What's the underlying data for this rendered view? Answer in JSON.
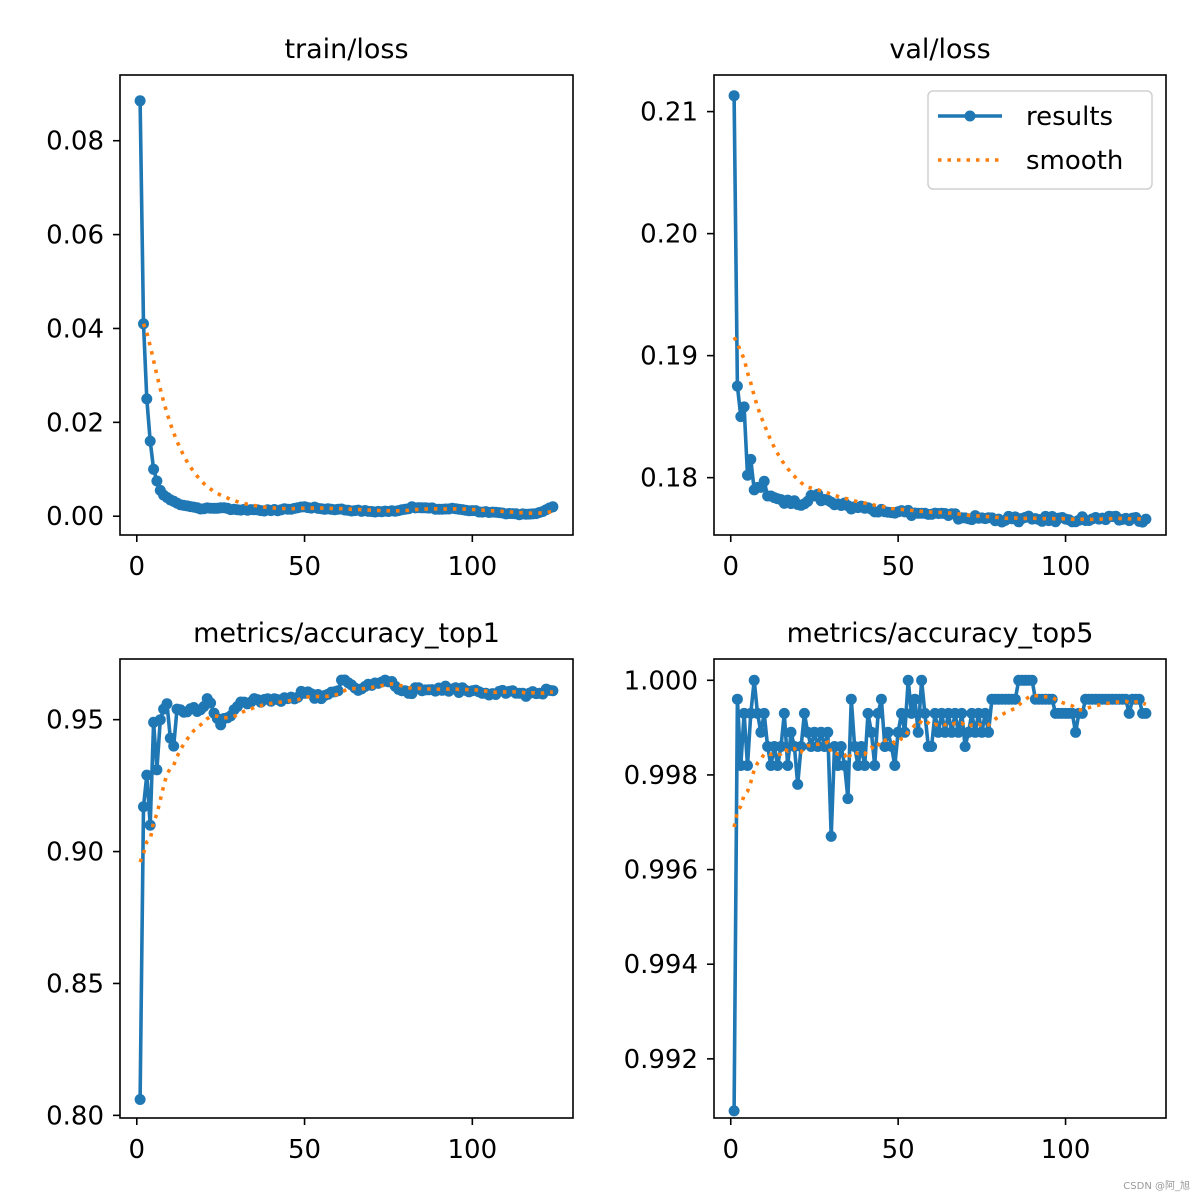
{
  "figure": {
    "watermark": "CSDN @阿_旭",
    "colors": {
      "results": "#1f77b4",
      "smooth": "#ff7f0e",
      "axes": "#000000"
    },
    "legend": {
      "placement": "upper-right",
      "panel": 1,
      "entries": [
        "results",
        "smooth"
      ]
    }
  },
  "chart_data": [
    {
      "type": "line",
      "title": "train/loss",
      "xlabel": "",
      "ylabel": "",
      "xlim": [
        -5,
        130
      ],
      "ylim": [
        -0.004,
        0.094
      ],
      "xticks": [
        0,
        50,
        100
      ],
      "yticks": [
        0.0,
        0.02,
        0.04,
        0.06,
        0.08
      ],
      "ytick_labels": [
        "0.00",
        "0.02",
        "0.04",
        "0.06",
        "0.08"
      ],
      "n_epochs": 124,
      "series": [
        {
          "name": "results",
          "anchors": [
            [
              1,
              0.0885
            ],
            [
              2,
              0.041
            ],
            [
              3,
              0.025
            ],
            [
              4,
              0.016
            ],
            [
              5,
              0.01
            ],
            [
              6,
              0.0075
            ],
            [
              7,
              0.0055
            ],
            [
              8,
              0.0045
            ],
            [
              10,
              0.0035
            ],
            [
              12,
              0.0028
            ],
            [
              15,
              0.0022
            ],
            [
              18,
              0.0018
            ],
            [
              20,
              0.0016
            ],
            [
              25,
              0.0018
            ],
            [
              30,
              0.0014
            ],
            [
              35,
              0.0014
            ],
            [
              40,
              0.0012
            ],
            [
              45,
              0.0015
            ],
            [
              50,
              0.002
            ],
            [
              55,
              0.0016
            ],
            [
              60,
              0.0015
            ],
            [
              65,
              0.0012
            ],
            [
              70,
              0.001
            ],
            [
              75,
              0.001
            ],
            [
              80,
              0.0015
            ],
            [
              82,
              0.002
            ],
            [
              85,
              0.0018
            ],
            [
              90,
              0.0015
            ],
            [
              95,
              0.0016
            ],
            [
              100,
              0.0012
            ],
            [
              105,
              0.0008
            ],
            [
              110,
              0.0005
            ],
            [
              115,
              0.0005
            ],
            [
              118,
              0.0005
            ],
            [
              121,
              0.001
            ],
            [
              124,
              0.002
            ]
          ],
          "noise": 0.00018
        },
        {
          "name": "smooth",
          "smoothing": 0.12,
          "start": 2
        }
      ]
    },
    {
      "type": "line",
      "title": "val/loss",
      "xlabel": "",
      "ylabel": "",
      "xlim": [
        -5,
        130
      ],
      "ylim": [
        0.1753,
        0.213
      ],
      "xticks": [
        0,
        50,
        100
      ],
      "yticks": [
        0.18,
        0.19,
        0.2,
        0.21
      ],
      "ytick_labels": [
        "0.18",
        "0.19",
        "0.20",
        "0.21"
      ],
      "n_epochs": 124,
      "series": [
        {
          "name": "results",
          "anchors": [
            [
              1,
              0.2113
            ],
            [
              2,
              0.1875
            ],
            [
              3,
              0.185
            ],
            [
              4,
              0.1858
            ],
            [
              5,
              0.1802
            ],
            [
              6,
              0.1815
            ],
            [
              7,
              0.179
            ],
            [
              8,
              0.1792
            ],
            [
              10,
              0.1797
            ],
            [
              11,
              0.1785
            ],
            [
              12,
              0.1785
            ],
            [
              15,
              0.1782
            ],
            [
              20,
              0.1778
            ],
            [
              25,
              0.1785
            ],
            [
              30,
              0.178
            ],
            [
              35,
              0.1777
            ],
            [
              40,
              0.1775
            ],
            [
              45,
              0.1774
            ],
            [
              50,
              0.1772
            ],
            [
              55,
              0.1771
            ],
            [
              60,
              0.177
            ],
            [
              65,
              0.1769
            ],
            [
              70,
              0.1767
            ],
            [
              75,
              0.1767
            ],
            [
              80,
              0.1766
            ],
            [
              90,
              0.1766
            ],
            [
              100,
              0.1766
            ],
            [
              110,
              0.1766
            ],
            [
              124,
              0.1766
            ]
          ],
          "noise": 0.00025
        },
        {
          "name": "smooth",
          "smoothing": 0.12,
          "start": 1,
          "start_value": 0.1915
        }
      ]
    },
    {
      "type": "line",
      "title": "metrics/accuracy_top1",
      "xlabel": "",
      "ylabel": "",
      "xlim": [
        -5,
        130
      ],
      "ylim": [
        0.799,
        0.973
      ],
      "xticks": [
        0,
        50,
        100
      ],
      "yticks": [
        0.8,
        0.85,
        0.9,
        0.95
      ],
      "ytick_labels": [
        "0.80",
        "0.85",
        "0.90",
        "0.95"
      ],
      "n_epochs": 124,
      "series": [
        {
          "name": "results",
          "anchors": [
            [
              1,
              0.806
            ],
            [
              2,
              0.917
            ],
            [
              3,
              0.929
            ],
            [
              4,
              0.91
            ],
            [
              5,
              0.949
            ],
            [
              6,
              0.931
            ],
            [
              7,
              0.95
            ],
            [
              8,
              0.954
            ],
            [
              9,
              0.956
            ],
            [
              10,
              0.943
            ],
            [
              11,
              0.94
            ],
            [
              12,
              0.954
            ],
            [
              15,
              0.953
            ],
            [
              20,
              0.955
            ],
            [
              21,
              0.958
            ],
            [
              25,
              0.948
            ],
            [
              30,
              0.955
            ],
            [
              35,
              0.958
            ],
            [
              40,
              0.957
            ],
            [
              45,
              0.958
            ],
            [
              50,
              0.96
            ],
            [
              55,
              0.958
            ],
            [
              60,
              0.961
            ],
            [
              61,
              0.965
            ],
            [
              65,
              0.962
            ],
            [
              70,
              0.963
            ],
            [
              74,
              0.965
            ],
            [
              80,
              0.961
            ],
            [
              85,
              0.961
            ],
            [
              90,
              0.962
            ],
            [
              100,
              0.961
            ],
            [
              110,
              0.96
            ],
            [
              115,
              0.96
            ],
            [
              120,
              0.96
            ],
            [
              124,
              0.961
            ]
          ],
          "noise": 0.0012
        },
        {
          "name": "smooth",
          "smoothing": 0.15,
          "start": 1,
          "start_value": 0.896
        }
      ]
    },
    {
      "type": "line",
      "title": "metrics/accuracy_top5",
      "xlabel": "",
      "ylabel": "",
      "xlim": [
        -5,
        130
      ],
      "ylim": [
        0.99075,
        1.00045
      ],
      "xticks": [
        0,
        50,
        100
      ],
      "yticks": [
        0.992,
        0.994,
        0.996,
        0.998,
        1.0
      ],
      "ytick_labels": [
        "0.992",
        "0.994",
        "0.996",
        "0.998",
        "1.000"
      ],
      "n_epochs": 124,
      "series": [
        {
          "name": "results",
          "values": [
            0.9909,
            0.9996,
            0.9982,
            0.9993,
            0.9982,
            0.9993,
            1.0,
            0.9993,
            0.9989,
            0.9993,
            0.9986,
            0.9982,
            0.9986,
            0.9982,
            0.9986,
            0.9993,
            0.9982,
            0.9989,
            0.9986,
            0.9978,
            0.9986,
            0.9993,
            0.9989,
            0.9986,
            0.9989,
            0.9986,
            0.9989,
            0.9986,
            0.9989,
            0.9967,
            0.9986,
            0.9982,
            0.9986,
            0.9982,
            0.9975,
            0.9996,
            0.9986,
            0.9982,
            0.9986,
            0.9982,
            0.9993,
            0.9989,
            0.9982,
            0.9993,
            0.9996,
            0.9986,
            0.9989,
            0.9986,
            0.9982,
            0.9989,
            0.9993,
            0.9989,
            1.0,
            0.9993,
            0.9996,
            0.9989,
            1.0,
            0.9993,
            0.9986,
            0.9986,
            0.9993,
            0.9989,
            0.9993,
            0.9989,
            0.9993,
            0.9989,
            0.9993,
            0.9989,
            0.9993,
            0.9986,
            0.9989,
            0.9993,
            0.9989,
            0.9993,
            0.9989,
            0.9993,
            0.9989,
            0.9996,
            0.9996,
            0.9996,
            0.9996,
            0.9996,
            0.9996,
            0.9996,
            0.9996,
            1.0,
            1.0,
            1.0,
            1.0,
            1.0,
            0.9996,
            0.9996,
            0.9996,
            0.9996,
            0.9996,
            0.9996,
            0.9993,
            0.9993,
            0.9993,
            0.9993,
            0.9993,
            0.9993,
            0.9989,
            0.9993,
            0.9993,
            0.9996,
            0.9996,
            0.9996,
            0.9996,
            0.9996,
            0.9996,
            0.9996,
            0.9996,
            0.9996,
            0.9996,
            0.9996,
            0.9996,
            0.9996,
            0.9993,
            0.9996,
            0.9996,
            0.9996,
            0.9993,
            0.9993
          ]
        },
        {
          "name": "smooth",
          "smoothing": 0.12,
          "start": 1,
          "start_value": 0.9969
        }
      ]
    }
  ]
}
